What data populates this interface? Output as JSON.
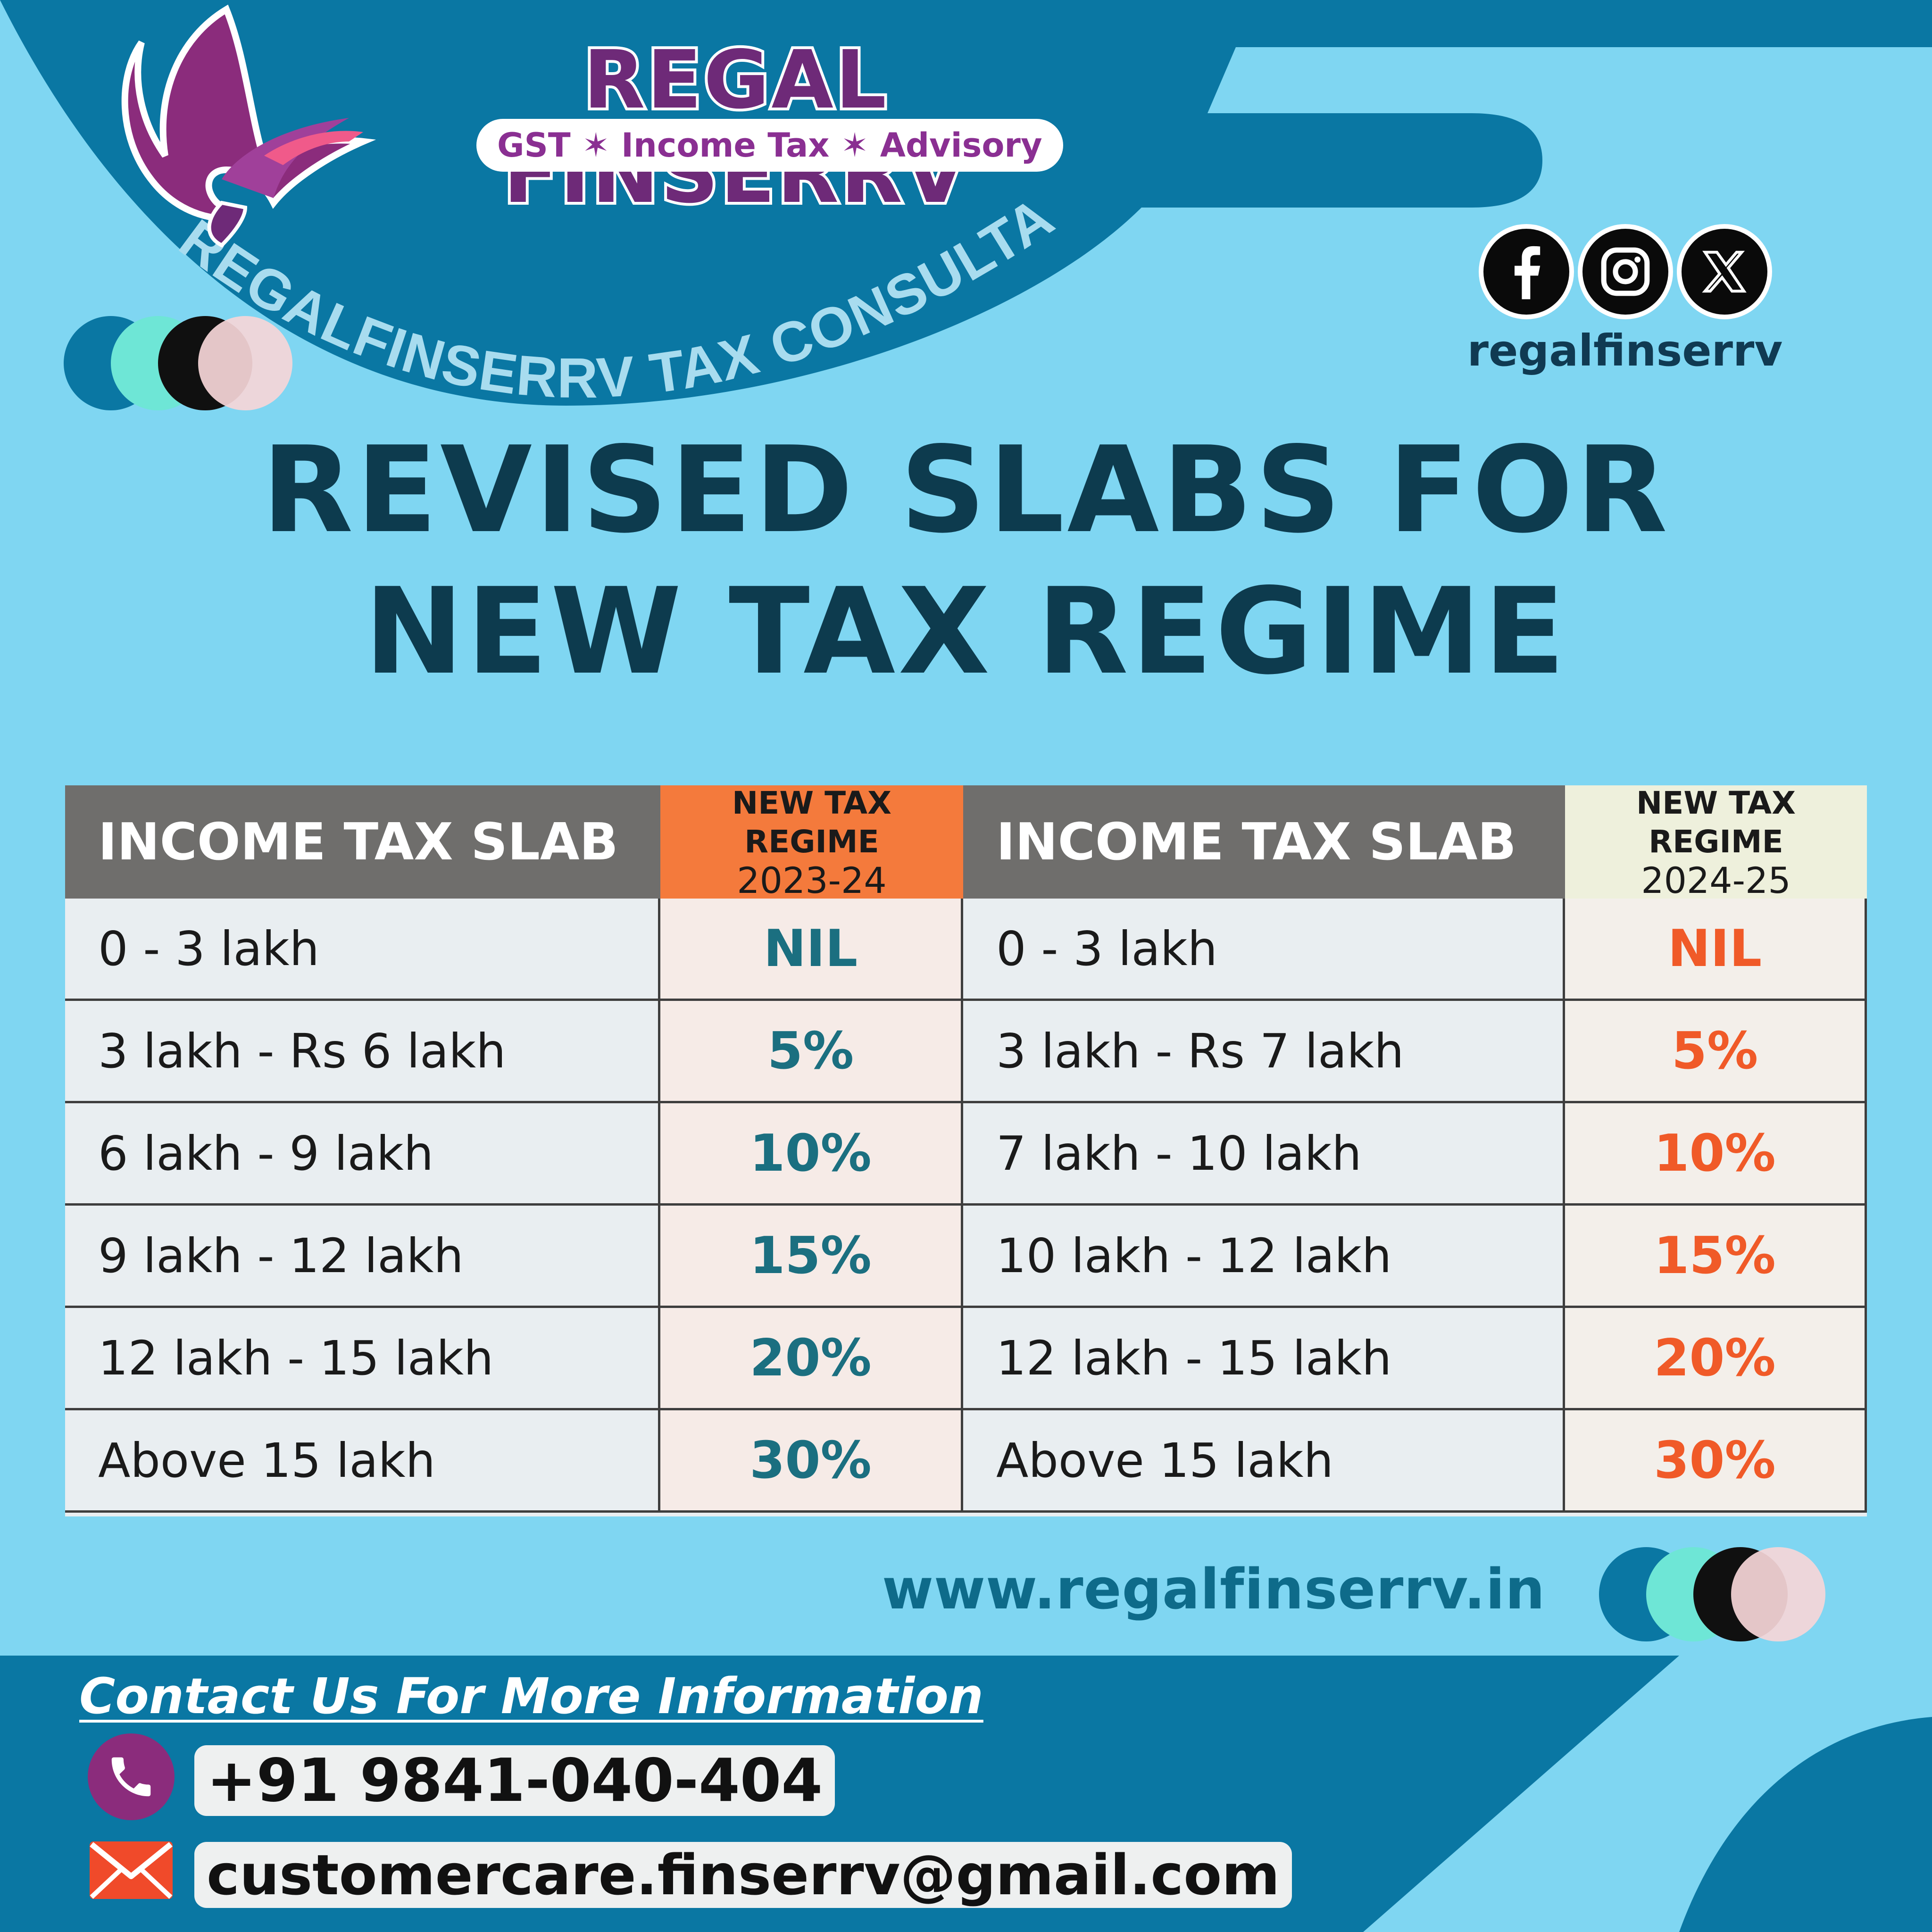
{
  "brand": {
    "name": "REGAL FINSERRV",
    "tagline": "GST ✶ Income Tax ✶ Advisory",
    "curved_label": "REGALFINSERRV TAX CONSULTANT"
  },
  "social": {
    "icons": [
      "facebook-icon",
      "instagram-icon",
      "x-icon"
    ],
    "handle": "regalfinserrv"
  },
  "title": {
    "line1": "REVISED SLABS FOR",
    "line2": "NEW TAX REGIME"
  },
  "table": {
    "left": {
      "slab_header": "INCOME TAX SLAB",
      "regime_header_line1": "NEW TAX REGIME",
      "regime_header_line2": "2023-24",
      "rows": [
        {
          "slab": "0 - 3 lakh",
          "rate": "NIL"
        },
        {
          "slab": "3 lakh - Rs 6 lakh",
          "rate": "5%"
        },
        {
          "slab": "6 lakh - 9 lakh",
          "rate": "10%"
        },
        {
          "slab": "9 lakh - 12 lakh",
          "rate": "15%"
        },
        {
          "slab": "12 lakh - 15 lakh",
          "rate": "20%"
        },
        {
          "slab": "Above 15 lakh",
          "rate": "30%"
        }
      ]
    },
    "right": {
      "slab_header": "INCOME TAX SLAB",
      "regime_header_line1": "NEW TAX REGIME",
      "regime_header_line2": "2024-25",
      "rows": [
        {
          "slab": "0 - 3 lakh",
          "rate": "NIL"
        },
        {
          "slab": "3 lakh - Rs 7 lakh",
          "rate": "5%"
        },
        {
          "slab": "7 lakh - 10 lakh",
          "rate": "10%"
        },
        {
          "slab": "10 lakh - 12 lakh",
          "rate": "15%"
        },
        {
          "slab": "12 lakh - 15 lakh",
          "rate": "20%"
        },
        {
          "slab": "Above 15 lakh",
          "rate": "30%"
        }
      ]
    }
  },
  "website": "www.regalfinserrv.in",
  "contact": {
    "heading": "Contact Us For More Information",
    "phone": "+91 9841-040-404",
    "email": "customercare.finserrv@gmail.com"
  },
  "colors": {
    "background": "#7fd6f2",
    "dark_blue": "#0a77a3",
    "brand_purple": "#6e2a78",
    "header_orange": "#f47a3c",
    "header_cream": "#eef0dc",
    "rate_teal": "#1b6f80",
    "rate_orange": "#f05a28"
  }
}
